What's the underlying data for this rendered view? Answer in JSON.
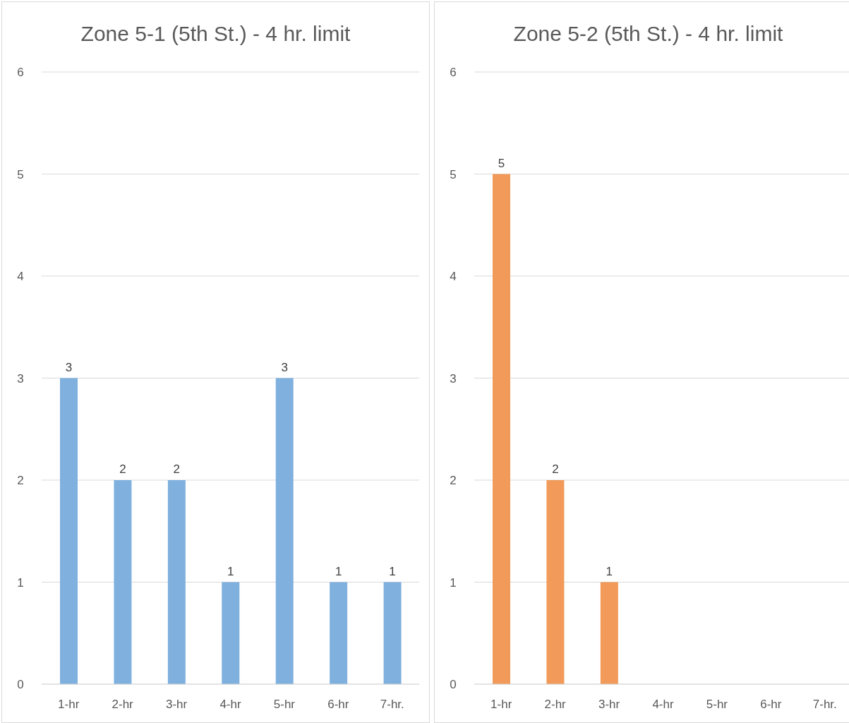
{
  "chart_data": [
    {
      "type": "bar",
      "title": "Zone 5-1 (5th St.) - 4 hr. limit",
      "categories": [
        "1-hr",
        "2-hr",
        "3-hr",
        "4-hr",
        "5-hr",
        "6-hr",
        "7-hr."
      ],
      "values": [
        3,
        2,
        2,
        1,
        3,
        1,
        1
      ],
      "color": "#7fb0de",
      "ylim": [
        0,
        6
      ],
      "yticks": [
        0,
        1,
        2,
        3,
        4,
        5,
        6
      ],
      "grid": "y",
      "data_labels": true
    },
    {
      "type": "bar",
      "title": "Zone 5-2 (5th St.) - 4 hr. limit",
      "categories": [
        "1-hr",
        "2-hr",
        "3-hr",
        "4-hr",
        "5-hr",
        "6-hr",
        "7-hr."
      ],
      "values": [
        5,
        2,
        1,
        null,
        null,
        null,
        null
      ],
      "color": "#f19a59",
      "ylim": [
        0,
        6
      ],
      "yticks": [
        0,
        1,
        2,
        3,
        4,
        5,
        6
      ],
      "grid": "y",
      "data_labels": true
    }
  ]
}
